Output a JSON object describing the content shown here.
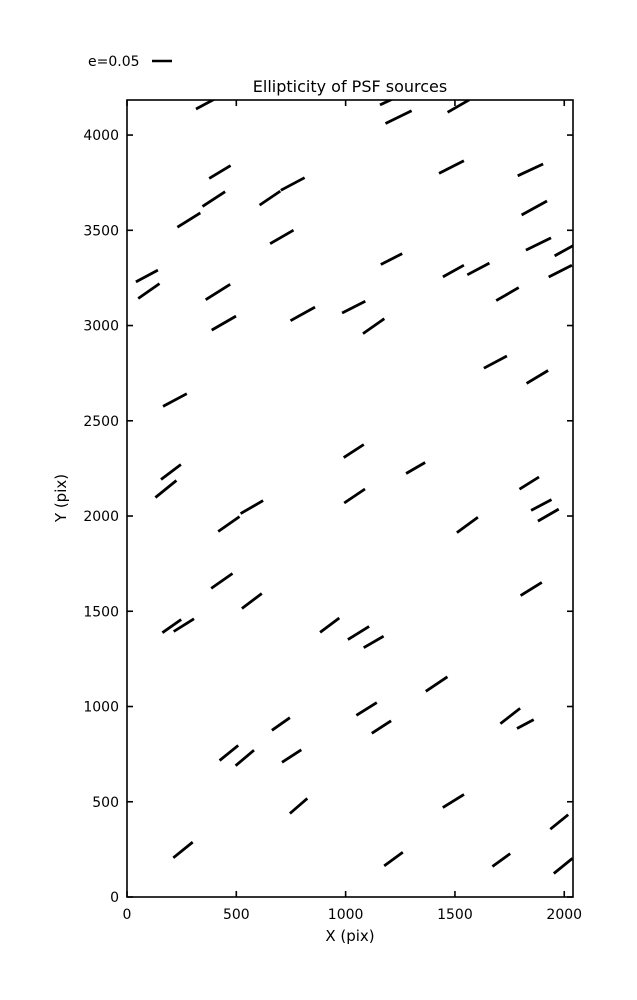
{
  "figure": {
    "background_color": "#ffffff",
    "line_color": "#000000"
  },
  "legend": {
    "label": "e=0.05",
    "position": "upper-left-above-axes"
  },
  "chart_data": {
    "type": "scatter",
    "marker": "line-whisker",
    "title": "Ellipticity of PSF sources",
    "xlabel": "X (pix)",
    "ylabel": "Y (pix)",
    "xlim": [
      0,
      2040
    ],
    "ylim": [
      0,
      4184
    ],
    "xticks": [
      0,
      500,
      1000,
      1500,
      2000
    ],
    "yticks": [
      0,
      500,
      1000,
      1500,
      2000,
      2500,
      3000,
      3500,
      4000
    ],
    "grid": false,
    "legend_label": "e=0.05",
    "whisker_color": "#000000",
    "whisker_stroke_px": 2.8,
    "points": [
      {
        "x": 370,
        "y": 4170,
        "angle": 28,
        "len": 27
      },
      {
        "x": 425,
        "y": 3806,
        "angle": 31,
        "len": 25
      },
      {
        "x": 397,
        "y": 3664,
        "angle": 33,
        "len": 27
      },
      {
        "x": 283,
        "y": 3554,
        "angle": 32,
        "len": 27
      },
      {
        "x": 654,
        "y": 3669,
        "angle": 34,
        "len": 25
      },
      {
        "x": 758,
        "y": 3743,
        "angle": 28,
        "len": 27
      },
      {
        "x": 708,
        "y": 3465,
        "angle": 30,
        "len": 27
      },
      {
        "x": 1213,
        "y": 4188,
        "angle": 25,
        "len": 27
      },
      {
        "x": 1242,
        "y": 4094,
        "angle": 26,
        "len": 29
      },
      {
        "x": 1516,
        "y": 4152,
        "angle": 30,
        "len": 25
      },
      {
        "x": 1484,
        "y": 3832,
        "angle": 27,
        "len": 28
      },
      {
        "x": 1845,
        "y": 3817,
        "angle": 25,
        "len": 28
      },
      {
        "x": 1863,
        "y": 3617,
        "angle": 29,
        "len": 29
      },
      {
        "x": 1882,
        "y": 3428,
        "angle": 26,
        "len": 28
      },
      {
        "x": 2010,
        "y": 3400,
        "angle": 29,
        "len": 27
      },
      {
        "x": 91,
        "y": 3260,
        "angle": 28,
        "len": 25
      },
      {
        "x": 100,
        "y": 3181,
        "angle": 35,
        "len": 26
      },
      {
        "x": 416,
        "y": 3176,
        "angle": 32,
        "len": 29
      },
      {
        "x": 443,
        "y": 3013,
        "angle": 30,
        "len": 28
      },
      {
        "x": 804,
        "y": 3061,
        "angle": 29,
        "len": 28
      },
      {
        "x": 219,
        "y": 2609,
        "angle": 28,
        "len": 27
      },
      {
        "x": 1210,
        "y": 3349,
        "angle": 27,
        "len": 24
      },
      {
        "x": 1493,
        "y": 3286,
        "angle": 29,
        "len": 24
      },
      {
        "x": 1607,
        "y": 3297,
        "angle": 28,
        "len": 25
      },
      {
        "x": 1982,
        "y": 3286,
        "angle": 27,
        "len": 26
      },
      {
        "x": 1740,
        "y": 3165,
        "angle": 30,
        "len": 26
      },
      {
        "x": 1037,
        "y": 3097,
        "angle": 27,
        "len": 26
      },
      {
        "x": 1128,
        "y": 2997,
        "angle": 35,
        "len": 26
      },
      {
        "x": 1685,
        "y": 2808,
        "angle": 28,
        "len": 26
      },
      {
        "x": 1877,
        "y": 2730,
        "angle": 31,
        "len": 25
      },
      {
        "x": 201,
        "y": 2231,
        "angle": 37,
        "len": 25
      },
      {
        "x": 178,
        "y": 2142,
        "angle": 39,
        "len": 27
      },
      {
        "x": 466,
        "y": 1958,
        "angle": 35,
        "len": 26
      },
      {
        "x": 571,
        "y": 2047,
        "angle": 30,
        "len": 26
      },
      {
        "x": 1037,
        "y": 2341,
        "angle": 33,
        "len": 24
      },
      {
        "x": 1041,
        "y": 2105,
        "angle": 34,
        "len": 25
      },
      {
        "x": 1320,
        "y": 2252,
        "angle": 30,
        "len": 22
      },
      {
        "x": 1557,
        "y": 1953,
        "angle": 36,
        "len": 26
      },
      {
        "x": 1840,
        "y": 2173,
        "angle": 32,
        "len": 23
      },
      {
        "x": 1895,
        "y": 2058,
        "angle": 28,
        "len": 23
      },
      {
        "x": 1927,
        "y": 2005,
        "angle": 30,
        "len": 24
      },
      {
        "x": 434,
        "y": 1659,
        "angle": 35,
        "len": 26
      },
      {
        "x": 571,
        "y": 1554,
        "angle": 37,
        "len": 25
      },
      {
        "x": 205,
        "y": 1422,
        "angle": 35,
        "len": 23
      },
      {
        "x": 260,
        "y": 1427,
        "angle": 32,
        "len": 24
      },
      {
        "x": 927,
        "y": 1427,
        "angle": 37,
        "len": 24
      },
      {
        "x": 1849,
        "y": 1617,
        "angle": 32,
        "len": 25
      },
      {
        "x": 1059,
        "y": 1386,
        "angle": 32,
        "len": 25
      },
      {
        "x": 1128,
        "y": 1339,
        "angle": 30,
        "len": 23
      },
      {
        "x": 1416,
        "y": 1118,
        "angle": 34,
        "len": 26
      },
      {
        "x": 1096,
        "y": 987,
        "angle": 32,
        "len": 24
      },
      {
        "x": 1164,
        "y": 892,
        "angle": 33,
        "len": 23
      },
      {
        "x": 1753,
        "y": 950,
        "angle": 38,
        "len": 25
      },
      {
        "x": 1822,
        "y": 908,
        "angle": 28,
        "len": 19
      },
      {
        "x": 466,
        "y": 756,
        "angle": 39,
        "len": 24
      },
      {
        "x": 539,
        "y": 730,
        "angle": 40,
        "len": 24
      },
      {
        "x": 753,
        "y": 740,
        "angle": 33,
        "len": 23
      },
      {
        "x": 704,
        "y": 908,
        "angle": 35,
        "len": 22
      },
      {
        "x": 785,
        "y": 478,
        "angle": 41,
        "len": 23
      },
      {
        "x": 256,
        "y": 247,
        "angle": 39,
        "len": 25
      },
      {
        "x": 1493,
        "y": 504,
        "angle": 32,
        "len": 25
      },
      {
        "x": 1977,
        "y": 394,
        "angle": 39,
        "len": 23
      },
      {
        "x": 1219,
        "y": 199,
        "angle": 36,
        "len": 23
      },
      {
        "x": 1712,
        "y": 194,
        "angle": 36,
        "len": 22
      },
      {
        "x": 1995,
        "y": 163,
        "angle": 39,
        "len": 24
      }
    ]
  }
}
